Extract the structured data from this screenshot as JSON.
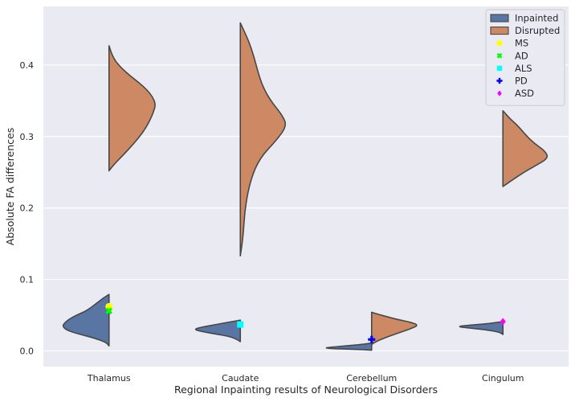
{
  "chart_data": {
    "type": "violin",
    "xlabel": "Regional Inpainting results of Neurological Disorders",
    "ylabel": "Absolute FA differences",
    "ylim": [
      -0.022,
      0.482
    ],
    "yticks": [
      0.0,
      0.1,
      0.2,
      0.3,
      0.4
    ],
    "ytick_labels": [
      "0.0",
      "0.1",
      "0.2",
      "0.3",
      "0.4"
    ],
    "categories": [
      "Thalamus",
      "Caudate",
      "Cerebellum",
      "Cingulum"
    ],
    "grid": true,
    "legend_position": "top-right",
    "series": [
      {
        "name": "Inpainted",
        "color": "#5975a4",
        "side": "left",
        "distributions": [
          {
            "category": "Thalamus",
            "min": 0.007,
            "max": 0.079,
            "profile": [
              [
                0.007,
                0
              ],
              [
                0.012,
                0.06
              ],
              [
                0.018,
                0.32
              ],
              [
                0.022,
                0.55
              ],
              [
                0.026,
                0.78
              ],
              [
                0.03,
                0.93
              ],
              [
                0.035,
                1.0
              ],
              [
                0.04,
                0.94
              ],
              [
                0.045,
                0.84
              ],
              [
                0.05,
                0.7
              ],
              [
                0.055,
                0.52
              ],
              [
                0.06,
                0.4
              ],
              [
                0.065,
                0.3
              ],
              [
                0.07,
                0.2
              ],
              [
                0.075,
                0.1
              ],
              [
                0.079,
                0
              ]
            ]
          },
          {
            "category": "Caudate",
            "min": 0.013,
            "max": 0.043,
            "profile": [
              [
                0.013,
                0
              ],
              [
                0.016,
                0.07
              ],
              [
                0.02,
                0.22
              ],
              [
                0.024,
                0.55
              ],
              [
                0.027,
                0.82
              ],
              [
                0.03,
                1.0
              ],
              [
                0.033,
                0.85
              ],
              [
                0.036,
                0.6
              ],
              [
                0.039,
                0.35
              ],
              [
                0.041,
                0.18
              ],
              [
                0.043,
                0
              ]
            ]
          },
          {
            "category": "Cerebellum",
            "min": 0.001,
            "max": 0.011,
            "profile": [
              [
                0.001,
                0
              ],
              [
                0.002,
                0.25
              ],
              [
                0.003,
                0.8
              ],
              [
                0.004,
                1.0
              ],
              [
                0.005,
                0.92
              ],
              [
                0.007,
                0.55
              ],
              [
                0.009,
                0.22
              ],
              [
                0.011,
                0
              ]
            ]
          },
          {
            "category": "Cingulum",
            "min": 0.023,
            "max": 0.041,
            "profile": [
              [
                0.023,
                0
              ],
              [
                0.026,
                0.07
              ],
              [
                0.029,
                0.3
              ],
              [
                0.032,
                0.72
              ],
              [
                0.034,
                1.0
              ],
              [
                0.036,
                0.72
              ],
              [
                0.038,
                0.35
              ],
              [
                0.04,
                0.1
              ],
              [
                0.041,
                0
              ]
            ]
          }
        ]
      },
      {
        "name": "Disrupted",
        "color": "#cc8963",
        "side": "right",
        "distributions": [
          {
            "category": "Thalamus",
            "min": 0.252,
            "max": 0.427,
            "profile": [
              [
                0.252,
                0
              ],
              [
                0.262,
                0.12
              ],
              [
                0.275,
                0.32
              ],
              [
                0.29,
                0.53
              ],
              [
                0.305,
                0.72
              ],
              [
                0.32,
                0.86
              ],
              [
                0.335,
                0.96
              ],
              [
                0.345,
                1.0
              ],
              [
                0.355,
                0.94
              ],
              [
                0.365,
                0.82
              ],
              [
                0.375,
                0.65
              ],
              [
                0.385,
                0.45
              ],
              [
                0.395,
                0.28
              ],
              [
                0.405,
                0.14
              ],
              [
                0.415,
                0.06
              ],
              [
                0.427,
                0
              ]
            ]
          },
          {
            "category": "Caudate",
            "min": 0.133,
            "max": 0.459,
            "profile": [
              [
                0.133,
                0
              ],
              [
                0.16,
                0.06
              ],
              [
                0.2,
                0.1
              ],
              [
                0.24,
                0.22
              ],
              [
                0.27,
                0.42
              ],
              [
                0.295,
                0.78
              ],
              [
                0.315,
                1.0
              ],
              [
                0.33,
                0.9
              ],
              [
                0.35,
                0.65
              ],
              [
                0.37,
                0.48
              ],
              [
                0.39,
                0.38
              ],
              [
                0.41,
                0.3
              ],
              [
                0.43,
                0.2
              ],
              [
                0.445,
                0.1
              ],
              [
                0.459,
                0
              ]
            ]
          },
          {
            "category": "Cerebellum",
            "min": 0.009,
            "max": 0.054,
            "profile": [
              [
                0.009,
                0
              ],
              [
                0.014,
                0.12
              ],
              [
                0.02,
                0.35
              ],
              [
                0.026,
                0.62
              ],
              [
                0.032,
                0.88
              ],
              [
                0.036,
                1.0
              ],
              [
                0.04,
                0.85
              ],
              [
                0.044,
                0.55
              ],
              [
                0.048,
                0.32
              ],
              [
                0.051,
                0.15
              ],
              [
                0.054,
                0
              ]
            ]
          },
          {
            "category": "Cingulum",
            "min": 0.23,
            "max": 0.336,
            "profile": [
              [
                0.23,
                0
              ],
              [
                0.24,
                0.22
              ],
              [
                0.25,
                0.45
              ],
              [
                0.26,
                0.72
              ],
              [
                0.27,
                0.98
              ],
              [
                0.28,
                0.9
              ],
              [
                0.29,
                0.68
              ],
              [
                0.3,
                0.52
              ],
              [
                0.315,
                0.32
              ],
              [
                0.325,
                0.15
              ],
              [
                0.336,
                0
              ]
            ]
          }
        ]
      }
    ],
    "markers": [
      {
        "name": "MS",
        "category": "Thalamus",
        "value": 0.062,
        "color": "#ffff00",
        "marker": "circle"
      },
      {
        "name": "AD",
        "category": "Thalamus",
        "value": 0.056,
        "color": "#00ff00",
        "marker": "x"
      },
      {
        "name": "ALS",
        "category": "Caudate",
        "value": 0.037,
        "color": "#00ffff",
        "marker": "square"
      },
      {
        "name": "PD",
        "category": "Cerebellum",
        "value": 0.016,
        "color": "#0000ff",
        "marker": "plus"
      },
      {
        "name": "ASD",
        "category": "Cingulum",
        "value": 0.041,
        "color": "#ff00ff",
        "marker": "diamond"
      }
    ],
    "legend": [
      {
        "label": "Inpainted",
        "kind": "patch",
        "color": "#5975a4"
      },
      {
        "label": "Disrupted",
        "kind": "patch",
        "color": "#cc8963"
      },
      {
        "label": "MS",
        "kind": "marker",
        "marker": "circle",
        "color": "#ffff00"
      },
      {
        "label": "AD",
        "kind": "marker",
        "marker": "x",
        "color": "#00ff00"
      },
      {
        "label": "ALS",
        "kind": "marker",
        "marker": "square",
        "color": "#00ffff"
      },
      {
        "label": "PD",
        "kind": "marker",
        "marker": "plus",
        "color": "#0000ff"
      },
      {
        "label": "ASD",
        "kind": "marker",
        "marker": "diamond",
        "color": "#ff00ff"
      }
    ]
  }
}
